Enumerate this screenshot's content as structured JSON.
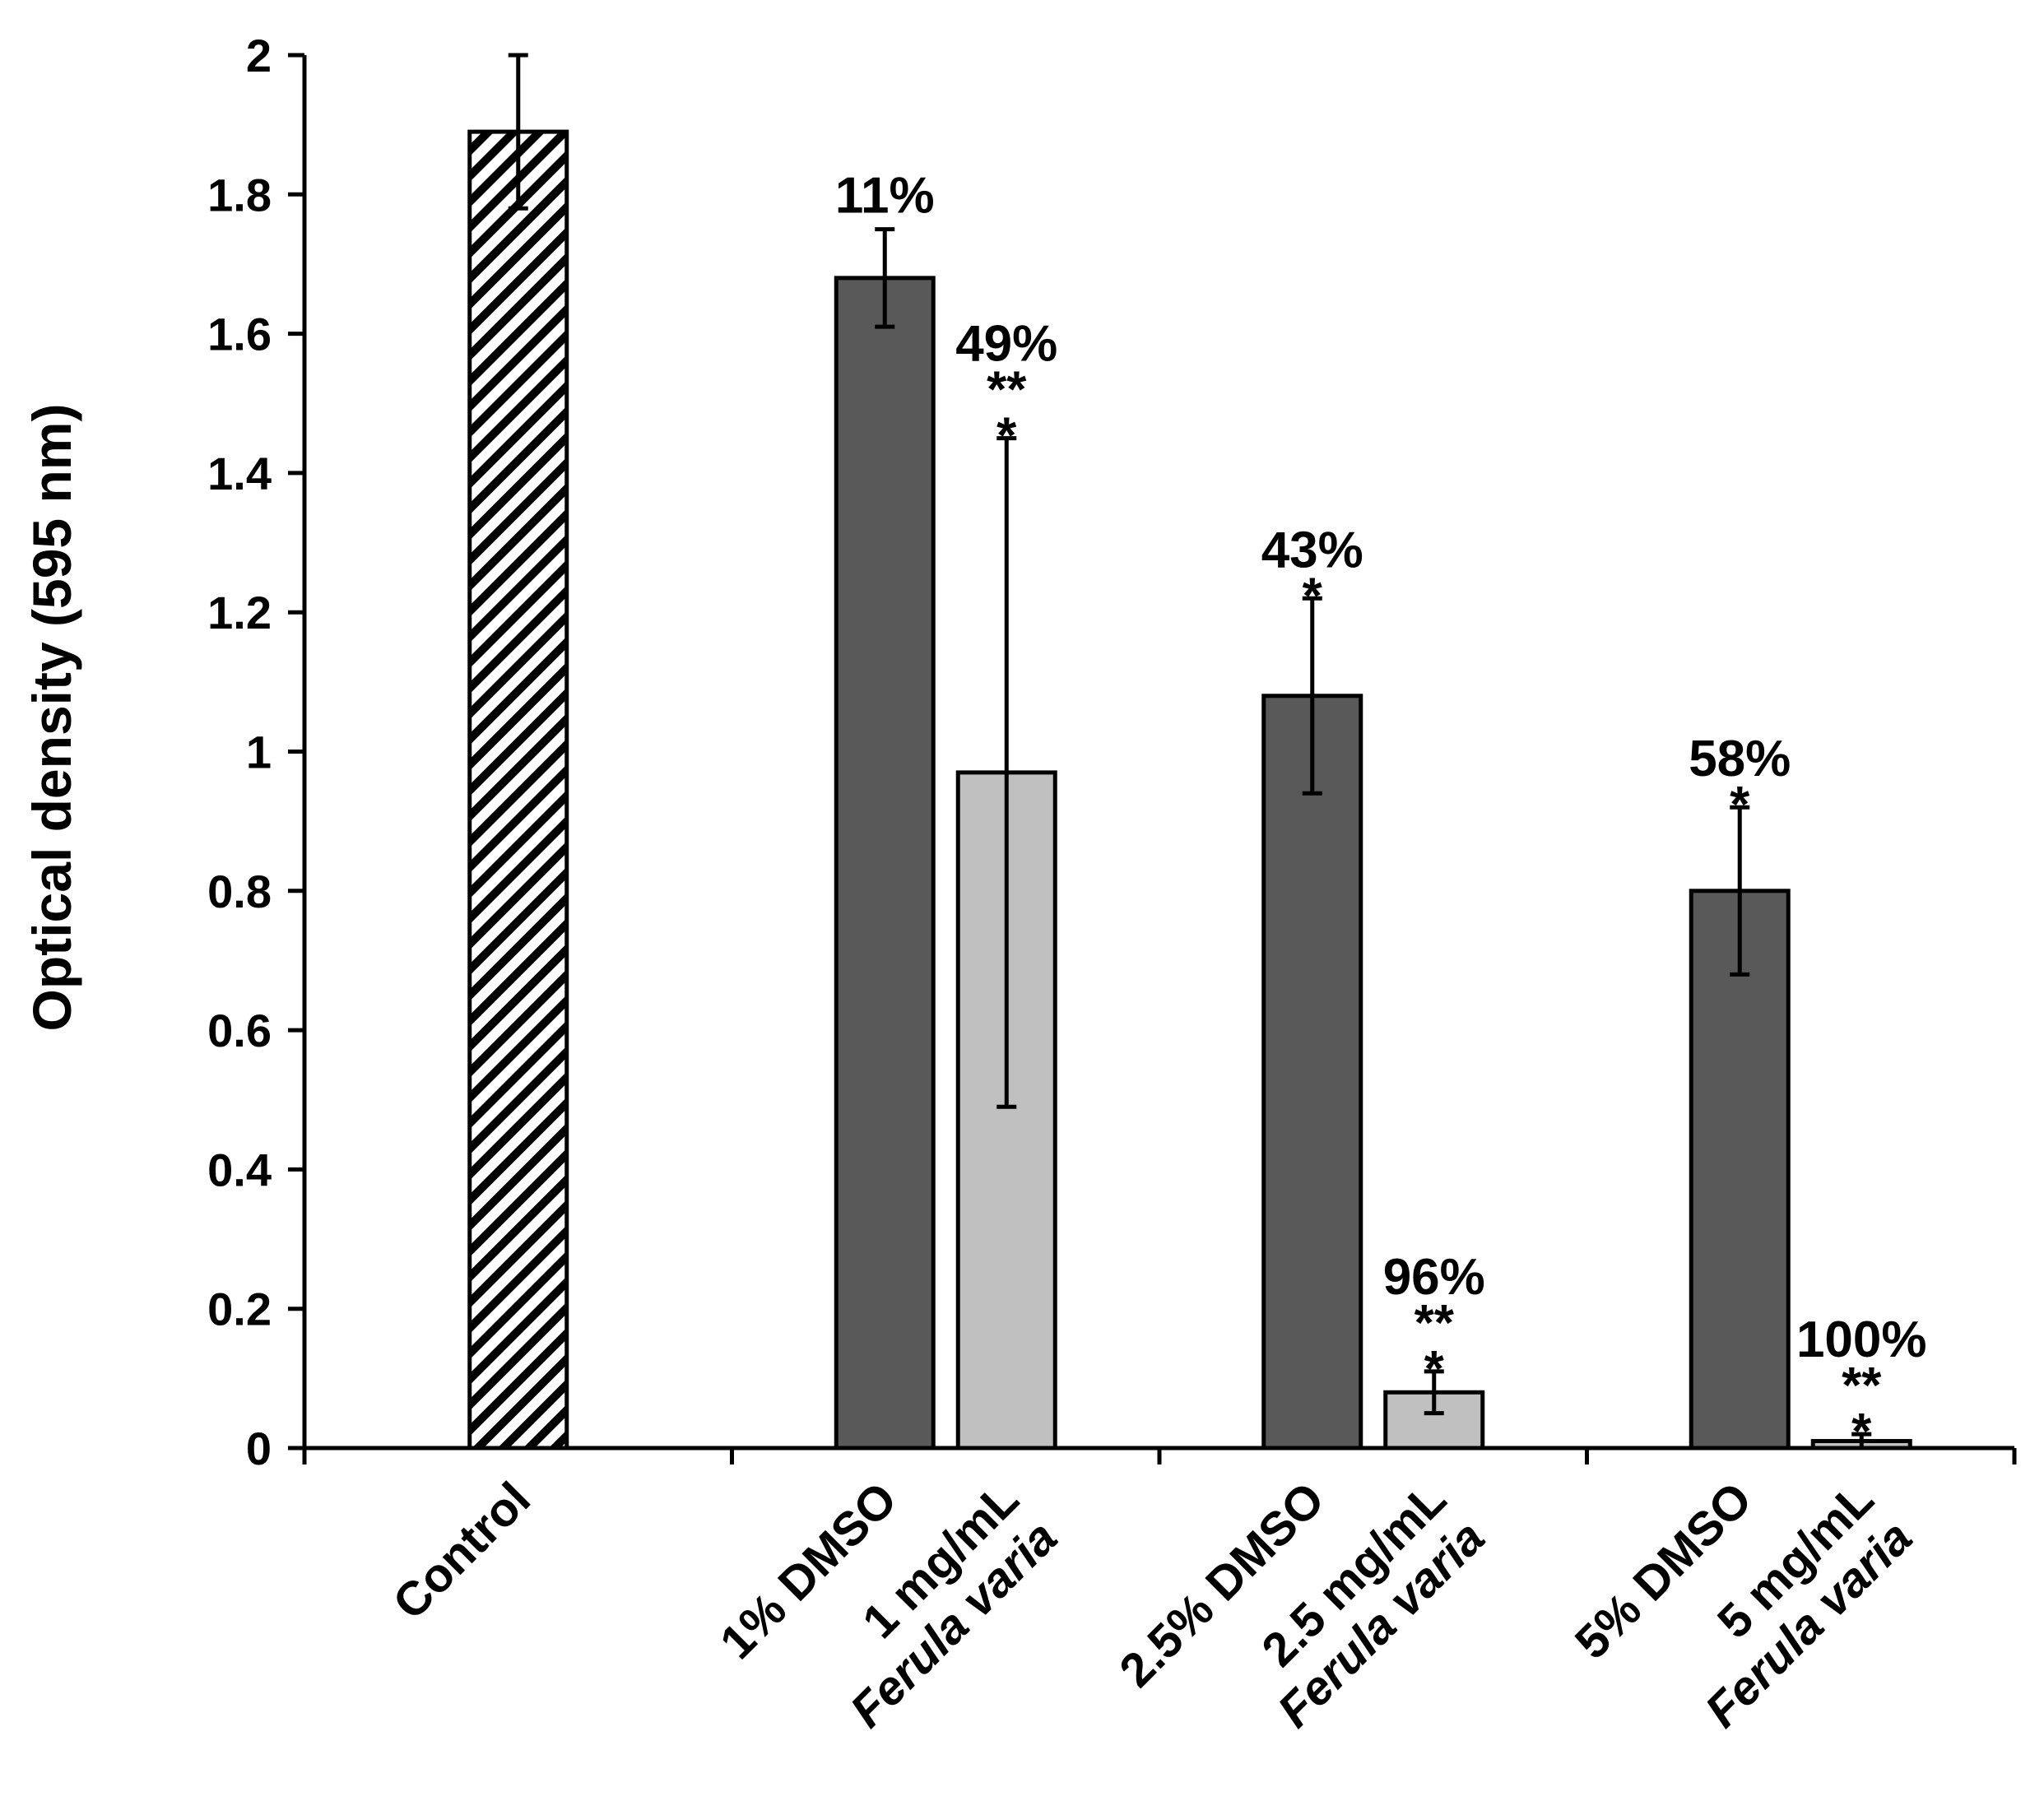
{
  "chart_data": {
    "type": "bar",
    "ylabel": "Optical density (595 nm)",
    "ylim": [
      0,
      2
    ],
    "yticks": [
      "0",
      "0.2",
      "0.4",
      "0.6",
      "0.8",
      "1",
      "1.2",
      "1.4",
      "1.6",
      "1.8",
      "2"
    ],
    "colors": {
      "dmso": "#595959",
      "ferula": "#c0c0c0",
      "control_stripe": "#000000",
      "control_bg": "#ffffff"
    },
    "groups": [
      {
        "bars": [
          {
            "slot": 0,
            "style": "control",
            "value": 1.89,
            "err_low": 1.78,
            "err_high": 2.0,
            "label_lines": [
              {
                "parts": [
                  {
                    "t": "Control",
                    "i": false
                  }
                ]
              }
            ]
          }
        ]
      },
      {
        "bars": [
          {
            "slot": 0,
            "style": "dmso",
            "value": 1.68,
            "err_low": 1.61,
            "err_high": 1.75,
            "label_lines": [
              {
                "parts": [
                  {
                    "t": "1% DMSO",
                    "i": false
                  }
                ]
              }
            ],
            "annotation": [
              "11%"
            ]
          },
          {
            "slot": 1,
            "style": "ferula",
            "value": 0.97,
            "err_low": 0.49,
            "err_high": 1.45,
            "label_lines": [
              {
                "parts": [
                  {
                    "t": "1 mg/mL",
                    "i": false
                  }
                ]
              },
              {
                "parts": [
                  {
                    "t": "Ferula varia",
                    "i": true
                  }
                ]
              }
            ],
            "annotation": [
              "49%",
              "**",
              "*"
            ]
          }
        ]
      },
      {
        "bars": [
          {
            "slot": 0,
            "style": "dmso",
            "value": 1.08,
            "err_low": 0.94,
            "err_high": 1.22,
            "label_lines": [
              {
                "parts": [
                  {
                    "t": "2.5% DMSO",
                    "i": false
                  }
                ]
              }
            ],
            "annotation": [
              "43%",
              "*"
            ]
          },
          {
            "slot": 1,
            "style": "ferula",
            "value": 0.08,
            "err_low": 0.05,
            "err_high": 0.11,
            "label_lines": [
              {
                "parts": [
                  {
                    "t": "2.5 mg/mL",
                    "i": false
                  }
                ]
              },
              {
                "parts": [
                  {
                    "t": "Ferula varia",
                    "i": true
                  }
                ]
              }
            ],
            "annotation": [
              "96%",
              "**",
              "*"
            ]
          }
        ]
      },
      {
        "bars": [
          {
            "slot": 0,
            "style": "dmso",
            "value": 0.8,
            "err_low": 0.68,
            "err_high": 0.92,
            "label_lines": [
              {
                "parts": [
                  {
                    "t": "5% DMSO",
                    "i": false
                  }
                ]
              }
            ],
            "annotation": [
              "58%",
              "*"
            ]
          },
          {
            "slot": 1,
            "style": "ferula",
            "value": 0.01,
            "err_low": 0.0,
            "err_high": 0.02,
            "label_lines": [
              {
                "parts": [
                  {
                    "t": "5 mg/mL",
                    "i": false
                  }
                ]
              },
              {
                "parts": [
                  {
                    "t": "Ferula varia",
                    "i": true
                  }
                ]
              }
            ],
            "annotation": [
              "100%",
              "**",
              "*"
            ]
          }
        ]
      }
    ]
  }
}
